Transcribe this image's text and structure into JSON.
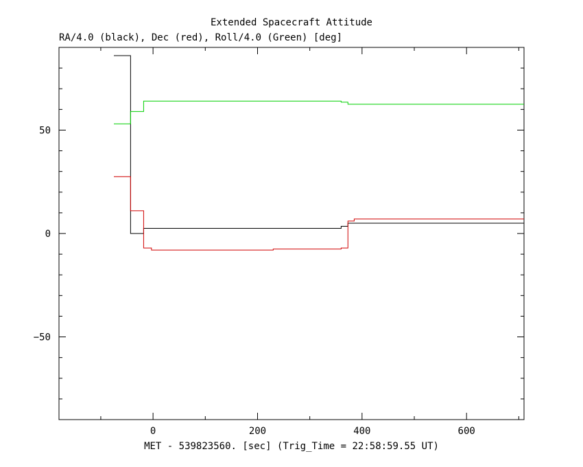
{
  "chart_data": {
    "type": "line",
    "title": "Extended Spacecraft Attitude",
    "subtitle": "RA/4.0 (black), Dec (red), Roll/4.0 (Green) [deg]",
    "xlabel": "MET - 539823560. [sec] (Trig_Time = 22:58:59.55 UT)",
    "ylabel": "",
    "xlim": [
      -180,
      710
    ],
    "ylim": [
      -90,
      90
    ],
    "x_ticks": [
      0,
      200,
      400,
      600
    ],
    "x_tick_labels": [
      "0",
      "200",
      "400",
      "600"
    ],
    "y_ticks": [
      -50,
      0,
      50
    ],
    "y_tick_labels": [
      "−50",
      "0",
      "50"
    ],
    "x_minor_step": 100,
    "y_minor_step": 10,
    "grid": false,
    "line_shape": "step",
    "series": [
      {
        "color": "#000000",
        "x": [
          -75,
          -43,
          -18,
          360,
          373,
          710
        ],
        "y": [
          86,
          0,
          2.5,
          3.5,
          5,
          5
        ]
      },
      {
        "color": "#d00000",
        "x": [
          -75,
          -43,
          -18,
          -3,
          230,
          360,
          373,
          385,
          710
        ],
        "y": [
          27.5,
          11,
          -7,
          -8,
          -7.5,
          -7,
          6,
          7,
          7
        ]
      },
      {
        "color": "#00d000",
        "x": [
          -75,
          -43,
          -18,
          360,
          373,
          710
        ],
        "y": [
          53,
          59,
          64,
          63.5,
          62.5,
          62.5
        ]
      }
    ]
  }
}
